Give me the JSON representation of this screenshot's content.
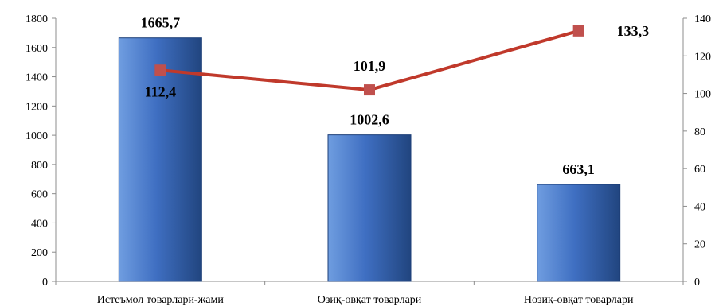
{
  "chart_data": {
    "type": "bar",
    "categories": [
      "Истеъмол товарлари-жами",
      "Озиқ-овқат товарлари",
      "Нозиқ-овқат товарлари"
    ],
    "series": [
      {
        "type": "bar",
        "axis": "left",
        "values": [
          1665.7,
          1002.6,
          663.1
        ],
        "labels": [
          "1665,7",
          "1002,6",
          "663,1"
        ]
      },
      {
        "type": "line",
        "axis": "right",
        "values": [
          112.4,
          101.9,
          133.3
        ],
        "labels": [
          "112,4",
          "101,9",
          "133,3"
        ]
      }
    ],
    "y_left": {
      "min": 0,
      "max": 1800,
      "ticks": [
        "0",
        "200",
        "400",
        "600",
        "800",
        "1000",
        "1200",
        "1400",
        "1600",
        "1800"
      ]
    },
    "y_right": {
      "min": 0,
      "max": 140,
      "ticks": [
        "0",
        "20",
        "40",
        "60",
        "80",
        "100",
        "120",
        "140"
      ]
    },
    "grid": false,
    "legend": "none",
    "colors": {
      "bar_top": "#6f9de0",
      "bar_mid": "#3f6fc2",
      "bar_dark": "#21457f",
      "line": "#c0392b",
      "marker": "#c0504d",
      "axis": "#8c8c8c"
    }
  }
}
